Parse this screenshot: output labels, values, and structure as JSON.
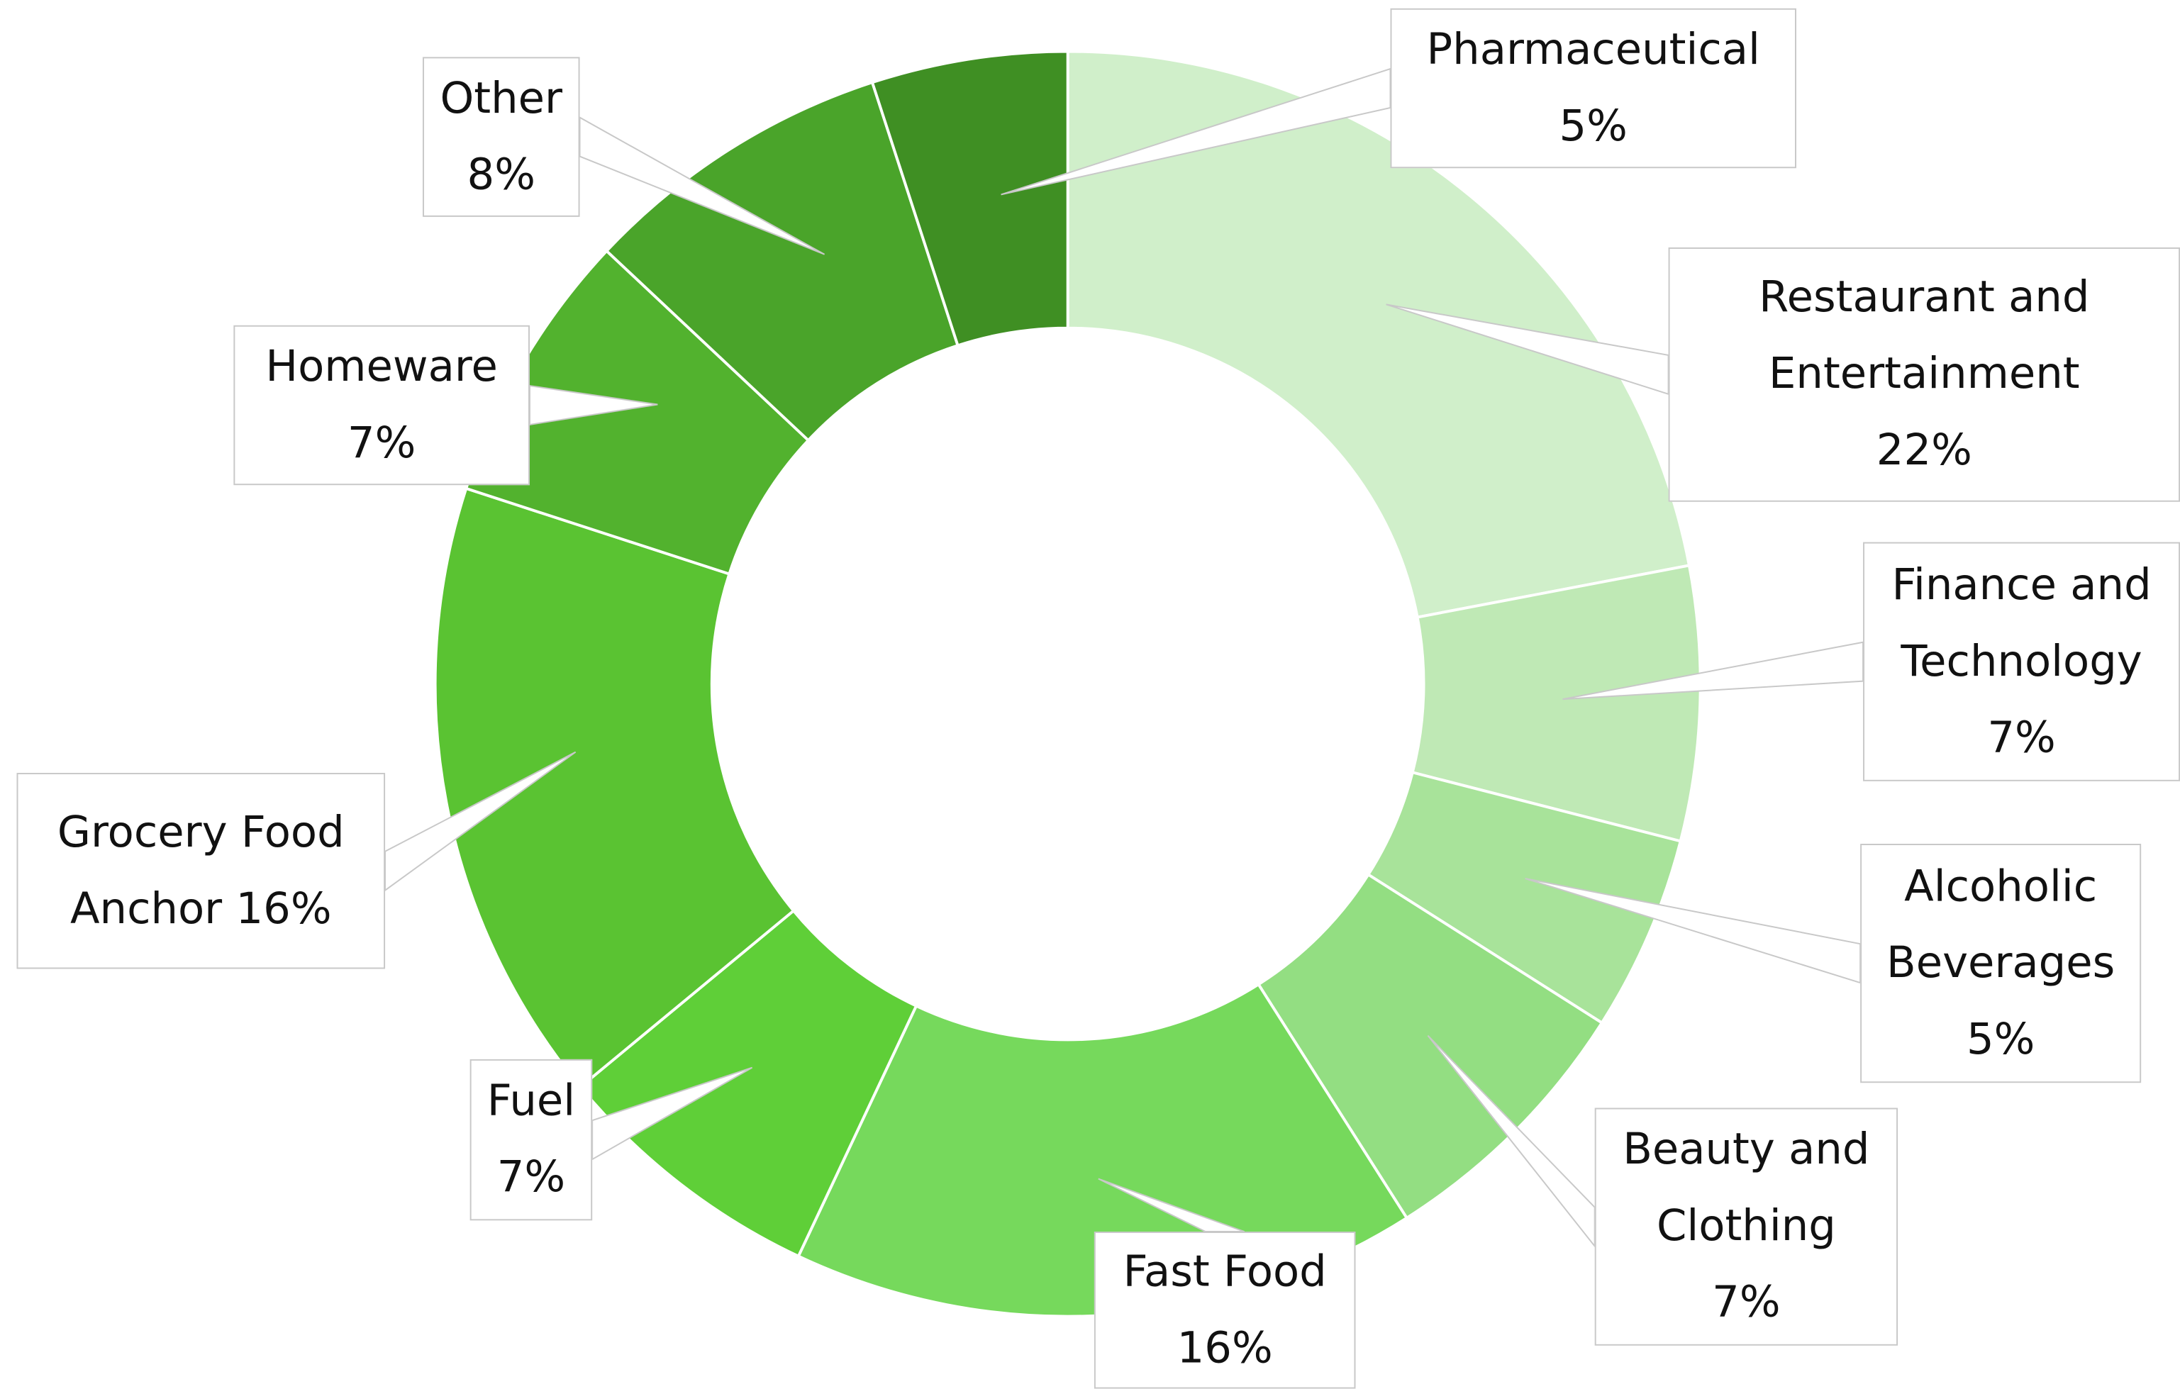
{
  "chart_data": {
    "type": "donut",
    "categories": [
      "Restaurant and Entertainment",
      "Finance and Technology",
      "Alcoholic Beverages",
      "Beauty and Clothing",
      "Fast Food",
      "Fuel",
      "Grocery Food Anchor",
      "Homeware",
      "Other",
      "Pharmaceutical"
    ],
    "values": [
      22,
      7,
      5,
      7,
      16,
      7,
      16,
      7,
      8,
      5
    ],
    "value_labels": [
      "22%",
      "7%",
      "5%",
      "7%",
      "16%",
      "7%",
      "16%",
      "7%",
      "8%",
      "5%"
    ],
    "colors": [
      "#d0efca",
      "#bfe9b5",
      "#a8e39a",
      "#93de82",
      "#76d95c",
      "#5fcf38",
      "#5ac332",
      "#52b22e",
      "#4aa42a",
      "#3f8f23"
    ]
  }
}
